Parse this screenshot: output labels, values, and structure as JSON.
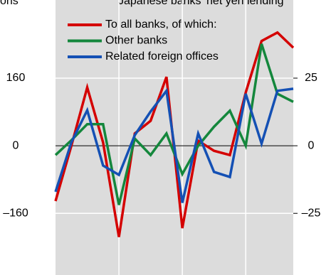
{
  "chart_data": {
    "type": "line",
    "title": "Japanese banks' net yen lending",
    "y_label": "ons",
    "x": [
      0,
      1,
      2,
      3,
      4,
      5,
      6,
      7,
      8,
      9,
      10,
      11,
      12,
      13,
      14,
      15
    ],
    "xlim": [
      0,
      15
    ],
    "xticks": [
      4,
      8,
      12
    ],
    "ylim": [
      -306,
      345
    ],
    "yticks": [
      {
        "value": -160,
        "label": "–160"
      },
      0,
      160
    ],
    "y2lim": [
      -47.8,
      53.9
    ],
    "y2ticks": [
      {
        "value": -25,
        "label": "–25"
      },
      0,
      25
    ],
    "grid": true,
    "legend": "top-left",
    "series": [
      {
        "name": "To all banks, of which:",
        "color": "#d40000",
        "values": [
          -131,
          0,
          138,
          8,
          -216,
          29,
          59,
          163,
          -195,
          12,
          -12,
          -22,
          126,
          248,
          268,
          232
        ]
      },
      {
        "name": "Other banks",
        "color": "#14873c",
        "values": [
          -22,
          13,
          51,
          51,
          -140,
          17,
          -22,
          29,
          -67,
          0,
          45,
          83,
          0,
          241,
          123,
          104
        ]
      },
      {
        "name": "Related foreign offices",
        "color": "#1450b4",
        "values": [
          -109,
          8,
          84,
          -47,
          -69,
          25,
          81,
          130,
          -135,
          29,
          -62,
          -74,
          123,
          5,
          130,
          135
        ]
      }
    ]
  }
}
